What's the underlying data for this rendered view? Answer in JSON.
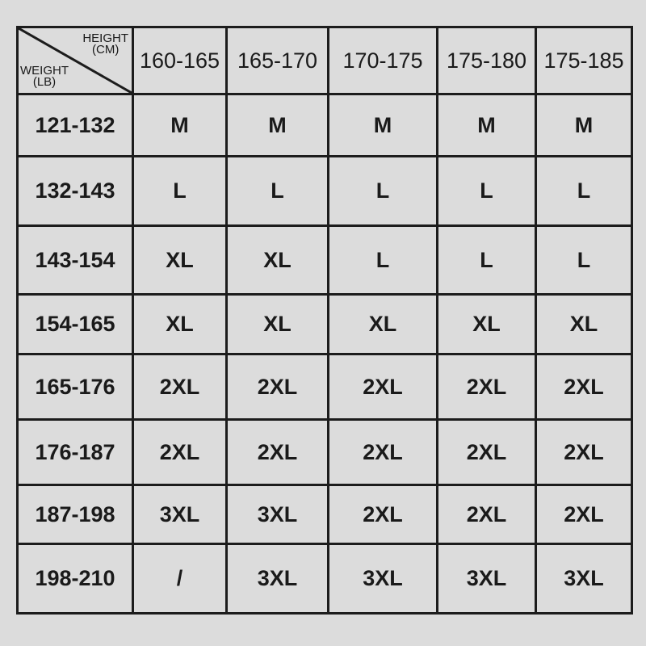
{
  "corner": {
    "height_label": "HEIGHT",
    "height_unit": "(CM)",
    "weight_label": "WEIGHT",
    "weight_unit": "(LB)"
  },
  "columns": [
    "160-165",
    "165-170",
    "170-175",
    "175-180",
    "175-185"
  ],
  "rows": [
    {
      "weight": "121-132",
      "sizes": [
        "M",
        "M",
        "M",
        "M",
        "M"
      ]
    },
    {
      "weight": "132-143",
      "sizes": [
        "L",
        "L",
        "L",
        "L",
        "L"
      ]
    },
    {
      "weight": "143-154",
      "sizes": [
        "XL",
        "XL",
        "L",
        "L",
        "L"
      ]
    },
    {
      "weight": "154-165",
      "sizes": [
        "XL",
        "XL",
        "XL",
        "XL",
        "XL"
      ]
    },
    {
      "weight": "165-176",
      "sizes": [
        "2XL",
        "2XL",
        "2XL",
        "2XL",
        "2XL"
      ]
    },
    {
      "weight": "176-187",
      "sizes": [
        "2XL",
        "2XL",
        "2XL",
        "2XL",
        "2XL"
      ]
    },
    {
      "weight": "187-198",
      "sizes": [
        "3XL",
        "3XL",
        "2XL",
        "2XL",
        "2XL"
      ]
    },
    {
      "weight": "198-210",
      "sizes": [
        "/",
        "3XL",
        "3XL",
        "3XL",
        "3XL"
      ]
    }
  ]
}
